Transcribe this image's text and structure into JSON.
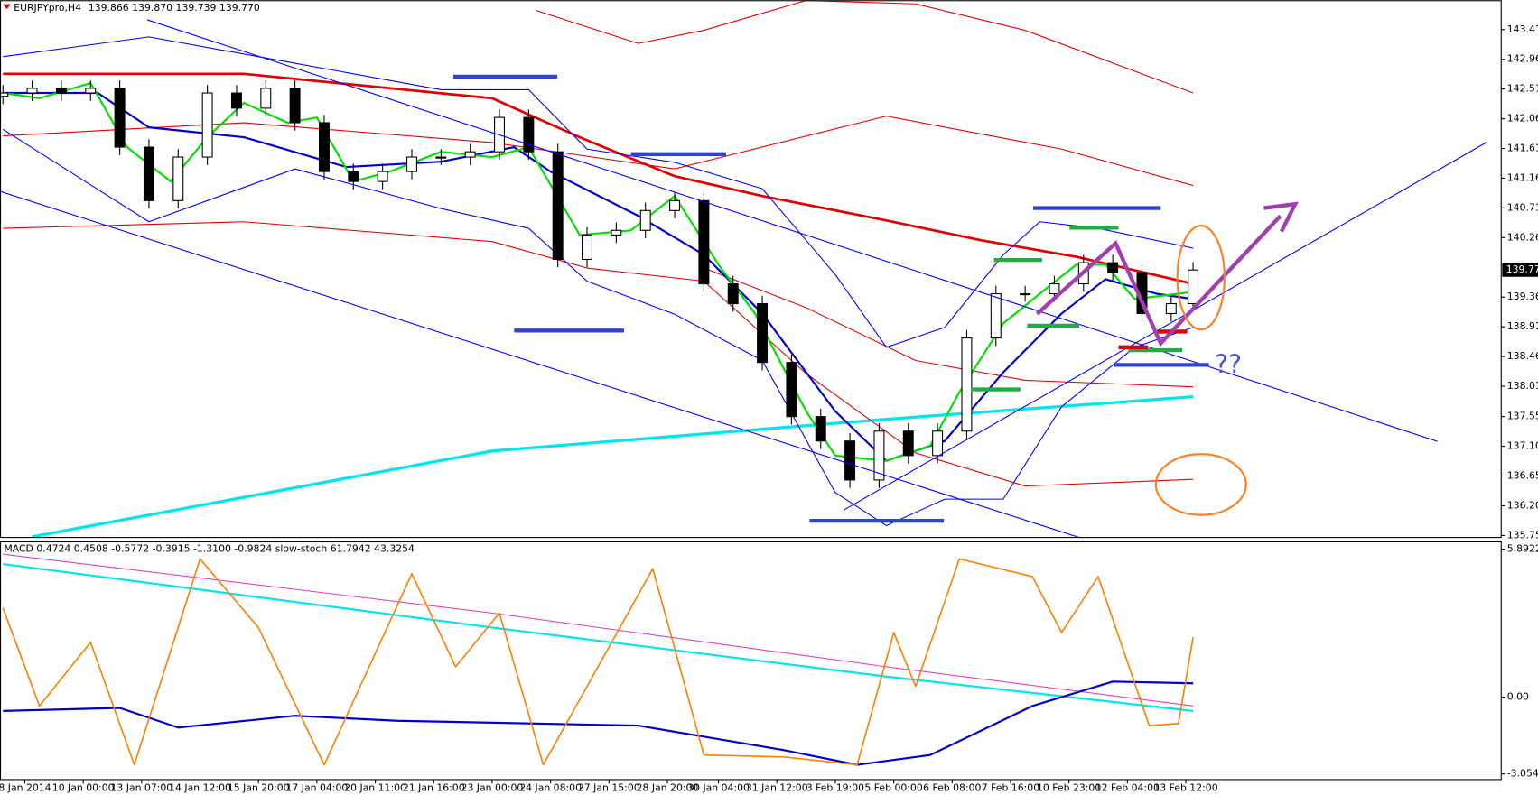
{
  "chart_data": [
    {
      "type": "candlestick",
      "title": "EURJPYpro,H4",
      "ohlc_labels": [
        "139.866",
        "139.870",
        "139.739",
        "139.770"
      ],
      "annotations": [
        "??"
      ],
      "xlim": [
        -0.4,
        205.2
      ],
      "ylim": [
        135.72,
        143.855
      ],
      "yticks": [
        {
          "value": 143.41,
          "label": "143.410"
        },
        {
          "value": 142.96,
          "label": "142.960"
        },
        {
          "value": 142.51,
          "label": "142.510"
        },
        {
          "value": 142.06,
          "label": "142.060"
        },
        {
          "value": 141.61,
          "label": "141.610"
        },
        {
          "value": 141.16,
          "label": "141.160"
        },
        {
          "value": 140.71,
          "label": "140.710"
        },
        {
          "value": 140.26,
          "label": "140.260"
        },
        {
          "value": 139.36,
          "label": "139.360"
        },
        {
          "value": 138.91,
          "label": "138.910"
        },
        {
          "value": 138.46,
          "label": "138.460"
        },
        {
          "value": 138.01,
          "label": "138.010"
        },
        {
          "value": 137.55,
          "label": "137.550"
        },
        {
          "value": 137.1,
          "label": "137.100"
        },
        {
          "value": 136.65,
          "label": "136.650"
        },
        {
          "value": 136.2,
          "label": "136.200"
        },
        {
          "value": 135.75,
          "label": "135.750"
        }
      ],
      "last": {
        "value": 139.77,
        "label": "139.770"
      },
      "candles": {
        "x": [
          0,
          4,
          8,
          12,
          16,
          20,
          24,
          28,
          32,
          36,
          40,
          44,
          48,
          52,
          56,
          60,
          64,
          68,
          72,
          76,
          80,
          84,
          88,
          92,
          96,
          100,
          104,
          108,
          112,
          116,
          120,
          124,
          128,
          132,
          136,
          140,
          144,
          148,
          152,
          156,
          160,
          163
        ],
        "open": [
          142.4,
          142.45,
          142.52,
          142.45,
          142.52,
          141.63,
          140.82,
          141.48,
          142.45,
          142.22,
          142.52,
          142.0,
          141.26,
          141.11,
          141.26,
          141.48,
          141.48,
          141.56,
          142.08,
          141.56,
          139.93,
          140.3,
          140.37,
          140.67,
          140.82,
          139.56,
          139.26,
          138.37,
          137.55,
          137.18,
          136.59,
          137.33,
          136.96,
          137.33,
          138.74,
          139.41,
          139.41,
          139.56,
          139.88,
          139.73,
          139.11,
          139.26
        ],
        "high": [
          142.57,
          142.64,
          142.64,
          142.64,
          142.64,
          141.75,
          141.6,
          142.57,
          142.57,
          142.64,
          142.64,
          142.12,
          141.38,
          141.38,
          141.6,
          141.6,
          141.68,
          142.2,
          142.2,
          141.68,
          140.42,
          140.49,
          140.79,
          140.94,
          140.94,
          139.68,
          139.38,
          138.49,
          137.67,
          137.3,
          137.45,
          137.45,
          137.45,
          138.86,
          139.53,
          139.53,
          139.68,
          140.0,
          140.0,
          139.85,
          139.38,
          139.89
        ],
        "low": [
          142.28,
          142.33,
          142.33,
          142.33,
          141.51,
          140.7,
          140.7,
          141.36,
          142.1,
          142.1,
          141.88,
          141.14,
          140.99,
          140.99,
          141.14,
          141.36,
          141.36,
          141.44,
          141.44,
          139.81,
          139.81,
          140.18,
          140.25,
          140.55,
          139.44,
          139.14,
          138.25,
          137.43,
          137.06,
          136.47,
          136.47,
          136.84,
          136.84,
          137.21,
          138.62,
          139.29,
          139.29,
          139.44,
          139.61,
          138.99,
          138.99,
          139.14
        ],
        "close": [
          142.45,
          142.52,
          142.45,
          142.52,
          141.63,
          140.82,
          141.48,
          142.45,
          142.22,
          142.52,
          142.0,
          141.26,
          141.11,
          141.26,
          141.48,
          141.48,
          141.56,
          142.08,
          141.56,
          139.93,
          140.3,
          140.37,
          140.67,
          140.82,
          139.56,
          139.26,
          138.37,
          137.55,
          137.18,
          136.59,
          137.33,
          136.96,
          137.33,
          138.74,
          139.41,
          139.41,
          139.56,
          139.88,
          139.73,
          139.11,
          139.26,
          139.77
        ]
      },
      "series": [
        {
          "color": "#00e5ee",
          "x": [
            4,
            67,
            121,
            163
          ],
          "values": [
            135.73,
            137.03,
            137.51,
            137.85
          ]
        },
        {
          "color": "#e00000",
          "x": [
            0,
            33,
            67,
            79,
            92,
            104,
            121,
            134,
            147,
            163
          ],
          "values": [
            142.74,
            142.74,
            142.37,
            141.78,
            141.19,
            140.89,
            140.52,
            140.22,
            139.97,
            139.56
          ]
        },
        {
          "color": "#e00000",
          "x": [
            73,
            87,
            96,
            110,
            125,
            140,
            163
          ],
          "values": [
            143.7,
            143.2,
            143.4,
            143.85,
            143.8,
            143.4,
            142.45
          ]
        },
        {
          "color": "#e00000",
          "x": [
            0,
            33,
            67,
            92,
            121,
            145,
            163
          ],
          "values": [
            141.8,
            142.0,
            141.7,
            141.3,
            142.1,
            141.6,
            141.05
          ]
        },
        {
          "color": "#e00000",
          "x": [
            0,
            33,
            67,
            80,
            96,
            110,
            125,
            140,
            163
          ],
          "values": [
            140.4,
            140.5,
            140.2,
            139.8,
            139.6,
            138.2,
            137.0,
            136.5,
            136.6
          ]
        },
        {
          "color": "#e00000",
          "x": [
            96,
            110,
            125,
            140,
            163
          ],
          "values": [
            139.8,
            139.2,
            138.4,
            138.1,
            138.0
          ]
        },
        {
          "color": "#0000ff",
          "x": [
            0,
            20,
            40,
            60,
            72,
            80,
            92,
            104,
            114,
            121,
            129,
            137,
            142,
            150,
            163
          ],
          "values": [
            143.0,
            143.3,
            142.9,
            142.5,
            142.5,
            141.6,
            141.4,
            141.0,
            139.7,
            138.6,
            138.9,
            140.0,
            140.5,
            140.4,
            140.1
          ]
        },
        {
          "color": "#0000ff",
          "x": [
            0,
            20,
            40,
            60,
            72,
            80,
            92,
            104,
            114,
            121,
            129,
            137,
            145,
            155,
            163
          ],
          "values": [
            141.9,
            140.5,
            141.3,
            140.7,
            140.4,
            139.6,
            139.1,
            138.4,
            136.4,
            135.9,
            136.3,
            136.3,
            137.7,
            138.6,
            138.9
          ]
        },
        {
          "color": "#0000cc",
          "x": [
            0,
            13,
            20,
            33,
            47,
            60,
            70,
            75,
            87,
            96,
            104,
            114,
            121,
            129,
            137,
            145,
            151,
            158,
            163
          ],
          "values": [
            142.45,
            142.45,
            141.93,
            141.78,
            141.33,
            141.41,
            141.63,
            141.26,
            140.59,
            140.0,
            139.11,
            137.63,
            136.88,
            137.18,
            138.22,
            139.11,
            139.63,
            139.41,
            139.33
          ]
        },
        {
          "color": "#00e000",
          "x": [
            0,
            5,
            12,
            17,
            23,
            28,
            33,
            39,
            43,
            48,
            53,
            60,
            67,
            72,
            79,
            86,
            92,
            98,
            103,
            110,
            114,
            121,
            127,
            131,
            137,
            142,
            147,
            151,
            155,
            161,
            163
          ],
          "values": [
            142.45,
            142.37,
            142.6,
            141.63,
            141.11,
            141.78,
            142.3,
            142.0,
            142.08,
            141.11,
            141.26,
            141.56,
            141.48,
            141.63,
            140.3,
            140.37,
            140.89,
            139.85,
            139.11,
            137.63,
            136.96,
            136.88,
            137.11,
            137.92,
            138.96,
            139.41,
            139.85,
            139.85,
            139.33,
            139.41,
            139.44
          ]
        }
      ]
    },
    {
      "type": "line",
      "title": "MACD 0.4724 0.4508 -0.5772 -0.3915 -1.3100 -0.9824 slow-stoch 61.7942 43.3254",
      "xlim": [
        -0.4,
        205.2
      ],
      "ylim": [
        -3.28,
        6.2
      ],
      "yticks": [
        5.8922,
        {
          "value": 0,
          "label": "0.00"
        },
        -3.0547
      ],
      "xticks": [
        {
          "value": 3,
          "label": "8 Jan 2014"
        },
        {
          "value": 11,
          "label": "10 Jan 00:00"
        },
        {
          "value": 19,
          "label": "13 Jan 07:00"
        },
        {
          "value": 27,
          "label": "14 Jan 12:00"
        },
        {
          "value": 35,
          "label": "15 Jan 20:00"
        },
        {
          "value": 43,
          "label": "17 Jan 04:00"
        },
        {
          "value": 51,
          "label": "20 Jan 11:00"
        },
        {
          "value": 59,
          "label": "21 Jan 16:00"
        },
        {
          "value": 67,
          "label": "23 Jan 00:00"
        },
        {
          "value": 75,
          "label": "24 Jan 08:00"
        },
        {
          "value": 83,
          "label": "27 Jan 15:00"
        },
        {
          "value": 91,
          "label": "28 Jan 20:00"
        },
        {
          "value": 98,
          "label": "30 Jan 04:00"
        },
        {
          "value": 106,
          "label": "31 Jan 12:00"
        },
        {
          "value": 114,
          "label": "3 Feb 19:00"
        },
        {
          "value": 122,
          "label": "5 Feb 00:00"
        },
        {
          "value": 130,
          "label": "6 Feb 08:00"
        },
        {
          "value": 138,
          "label": "7 Feb 16:00"
        },
        {
          "value": 146,
          "label": "10 Feb 23:00"
        },
        {
          "value": 154,
          "label": "12 Feb 04:00"
        },
        {
          "value": 162,
          "label": "13 Feb 12:00"
        }
      ],
      "series": [
        {
          "color": "#e040c0",
          "x": [
            0,
            67,
            121,
            163
          ],
          "values": [
            5.69,
            3.35,
            1.21,
            -0.35
          ]
        },
        {
          "color": "#00e5ee",
          "x": [
            0,
            67,
            121,
            163
          ],
          "values": [
            5.3,
            2.77,
            0.82,
            -0.55
          ]
        },
        {
          "color": "#0000cc",
          "x": [
            0,
            16,
            24,
            40,
            54,
            87,
            107,
            117,
            127,
            141,
            152,
            163
          ],
          "values": [
            -0.55,
            -0.43,
            -1.21,
            -0.74,
            -0.94,
            -1.13,
            -2.11,
            -2.69,
            -2.3,
            -0.35,
            0.62,
            0.55
          ]
        },
        {
          "color": "#ff8000",
          "x": [
            0,
            5,
            12,
            18,
            27,
            35,
            44,
            56,
            62,
            68,
            74,
            89,
            96,
            107,
            117,
            122,
            125,
            131,
            141,
            145,
            150,
            157,
            161,
            163
          ],
          "values": [
            3.55,
            -0.35,
            2.18,
            -2.69,
            5.5,
            2.77,
            -2.69,
            4.91,
            1.21,
            3.35,
            -2.69,
            5.11,
            -2.3,
            -2.38,
            -2.69,
            2.57,
            0.43,
            5.5,
            4.8,
            2.57,
            4.8,
            -1.13,
            -1.05,
            2.38
          ]
        }
      ]
    }
  ]
}
